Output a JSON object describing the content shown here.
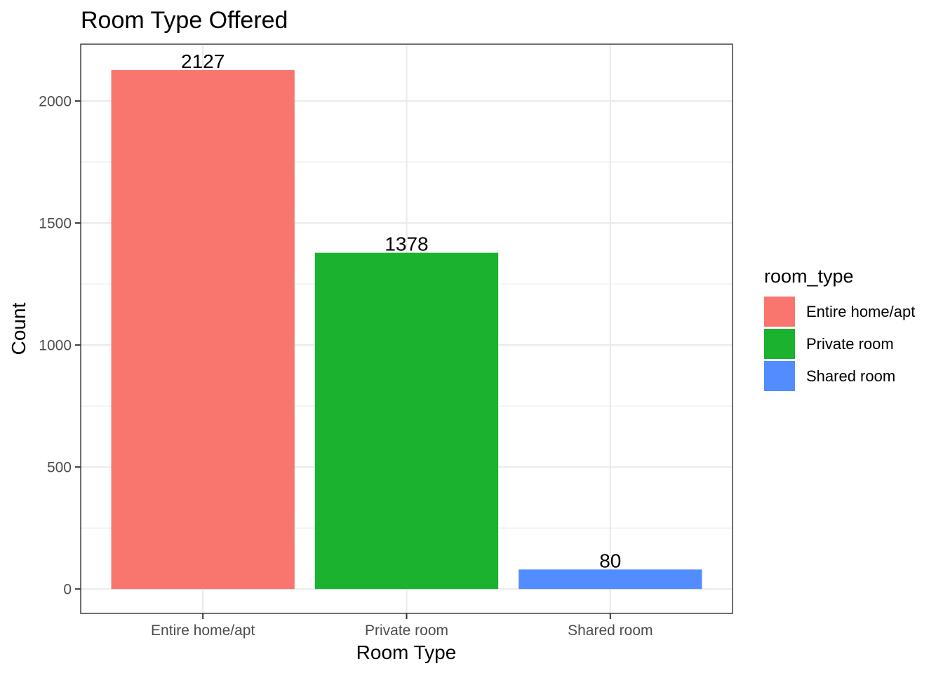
{
  "chart_data": {
    "type": "bar",
    "title": "Room Type Offered",
    "xlabel": "Room Type",
    "ylabel": "Count",
    "categories": [
      "Entire home/apt",
      "Private room",
      "Shared room"
    ],
    "values": [
      2127,
      1378,
      80
    ],
    "data_labels": [
      "2127",
      "1378",
      "80"
    ],
    "colors": [
      "#F8766D",
      "#1AB22F",
      "#528CFF"
    ],
    "ylim": [
      -100,
      2233
    ],
    "yticks": [
      0,
      500,
      1000,
      1500,
      2000
    ],
    "ytick_labels": [
      "0",
      "500",
      "1000",
      "1500",
      "2000"
    ],
    "grid": true,
    "legend": {
      "title": "room_type",
      "placement": "right",
      "entries": [
        "Entire home/apt",
        "Private room",
        "Shared room"
      ]
    }
  }
}
